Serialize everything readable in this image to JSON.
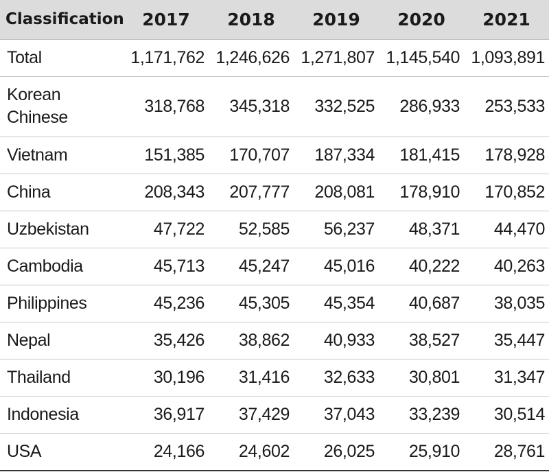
{
  "chart_data": {
    "type": "table",
    "columns": [
      "Classification",
      "2017",
      "2018",
      "2019",
      "2020",
      "2021"
    ],
    "rows": [
      {
        "label": "Total",
        "values": [
          "1,171,762",
          "1,246,626",
          "1,271,807",
          "1,145,540",
          "1,093,891"
        ]
      },
      {
        "label": "Korean Chinese",
        "values": [
          "318,768",
          "345,318",
          "332,525",
          "286,933",
          "253,533"
        ]
      },
      {
        "label": "Vietnam",
        "values": [
          "151,385",
          "170,707",
          "187,334",
          "181,415",
          "178,928"
        ]
      },
      {
        "label": "China",
        "values": [
          "208,343",
          "207,777",
          "208,081",
          "178,910",
          "170,852"
        ]
      },
      {
        "label": "Uzbekistan",
        "values": [
          "47,722",
          "52,585",
          "56,237",
          "48,371",
          "44,470"
        ]
      },
      {
        "label": "Cambodia",
        "values": [
          "45,713",
          "45,247",
          "45,016",
          "40,222",
          "40,263"
        ]
      },
      {
        "label": "Philippines",
        "values": [
          "45,236",
          "45,305",
          "45,354",
          "40,687",
          "38,035"
        ]
      },
      {
        "label": "Nepal",
        "values": [
          "35,426",
          "38,862",
          "40,933",
          "38,527",
          "35,447"
        ]
      },
      {
        "label": "Thailand",
        "values": [
          "30,196",
          "31,416",
          "32,633",
          "30,801",
          "31,347"
        ]
      },
      {
        "label": "Indonesia",
        "values": [
          "36,917",
          "37,429",
          "37,043",
          "33,239",
          "30,514"
        ]
      },
      {
        "label": "USA",
        "values": [
          "24,166",
          "24,602",
          "26,025",
          "25,910",
          "28,761"
        ]
      }
    ]
  }
}
